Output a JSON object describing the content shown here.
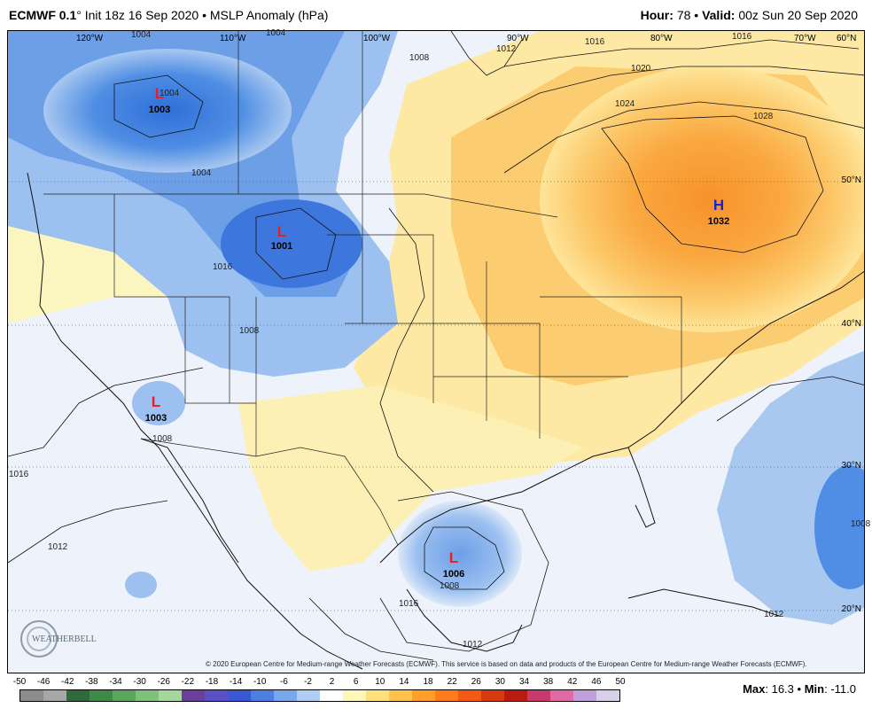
{
  "header": {
    "model": "ECMWF 0.1",
    "init": "Init 18z 16 Sep 2020",
    "product": "MSLP Anomaly (hPa)",
    "hour_label": "Hour:",
    "hour_value": "78",
    "valid_label": "Valid:",
    "valid_value": "00z Sun 20 Sep 2020"
  },
  "longitudes": [
    "120°W",
    "110°W",
    "100°W",
    "90°W",
    "80°W",
    "70°W",
    "60°N"
  ],
  "latitudes": [
    "50°N",
    "40°N",
    "30°N",
    "20°N"
  ],
  "pressure_centers": [
    {
      "type": "L",
      "value": "1003",
      "color": "#e0202a"
    },
    {
      "type": "L",
      "value": "1001",
      "color": "#e0202a"
    },
    {
      "type": "L",
      "value": "1003",
      "color": "#e0202a"
    },
    {
      "type": "H",
      "value": "1032",
      "color": "#1a22d8"
    },
    {
      "type": "L",
      "value": "1006",
      "color": "#e0202a"
    }
  ],
  "contour_labels": [
    "1004",
    "1004",
    "1008",
    "1012",
    "1016",
    "1020",
    "1024",
    "1028",
    "1016",
    "1004",
    "1004",
    "1008",
    "1016",
    "1008",
    "1016",
    "1012",
    "1008",
    "1016",
    "1012",
    "1008",
    "1012"
  ],
  "credit": "© 2020 European Centre for Medium-range Weather Forecasts (ECMWF). This service is based on data and products of the European Centre for Medium-range Weather Forecasts (ECMWF).",
  "logo_text": "WEATHERBELL",
  "colorbar": {
    "ticks": [
      "-50",
      "-46",
      "-42",
      "-38",
      "-34",
      "-30",
      "-26",
      "-22",
      "-18",
      "-14",
      "-10",
      "-6",
      "-2",
      "2",
      "6",
      "10",
      "14",
      "18",
      "22",
      "26",
      "30",
      "34",
      "38",
      "42",
      "46",
      "50"
    ],
    "colors": [
      "#8c8c8c",
      "#a7a7a7",
      "#2f6b3a",
      "#3f8a48",
      "#5aa65c",
      "#7fc07a",
      "#a5d69c",
      "#6b3f9b",
      "#5a52c4",
      "#3a58d4",
      "#4d7fe0",
      "#79a7ec",
      "#b0cdf4",
      "#ffffff",
      "#fff6b8",
      "#ffe07a",
      "#ffc24d",
      "#ff9f2a",
      "#ff7a1a",
      "#f25a14",
      "#d83a10",
      "#b81c10",
      "#c83a6e",
      "#e06aa6",
      "#c0a0d8",
      "#d8d0e8"
    ]
  },
  "stats": {
    "max_label": "Max",
    "max_value": "16.3",
    "min_label": "Min",
    "min_value": "-11.0"
  }
}
